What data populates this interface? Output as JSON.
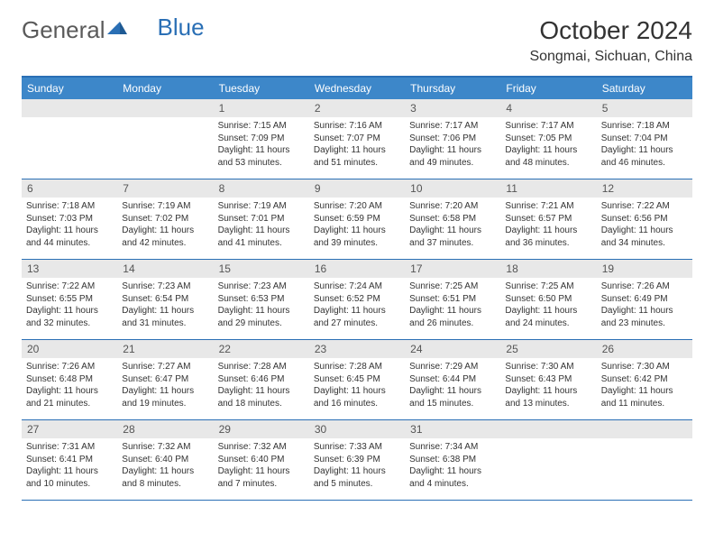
{
  "logo": {
    "text1": "General",
    "text2": "Blue"
  },
  "title": "October 2024",
  "location": "Songmai, Sichuan, China",
  "colors": {
    "header_bg": "#3d87c9",
    "border": "#2a6fb5",
    "daynum_bg": "#e8e8e8",
    "text": "#333333",
    "logo_gray": "#5a5a5a",
    "logo_blue": "#2a6fb5"
  },
  "days_of_week": [
    "Sunday",
    "Monday",
    "Tuesday",
    "Wednesday",
    "Thursday",
    "Friday",
    "Saturday"
  ],
  "weeks": [
    [
      {
        "n": "",
        "empty": true
      },
      {
        "n": "",
        "empty": true
      },
      {
        "n": "1",
        "sr": "7:15 AM",
        "ss": "7:09 PM",
        "dl": "11 hours and 53 minutes."
      },
      {
        "n": "2",
        "sr": "7:16 AM",
        "ss": "7:07 PM",
        "dl": "11 hours and 51 minutes."
      },
      {
        "n": "3",
        "sr": "7:17 AM",
        "ss": "7:06 PM",
        "dl": "11 hours and 49 minutes."
      },
      {
        "n": "4",
        "sr": "7:17 AM",
        "ss": "7:05 PM",
        "dl": "11 hours and 48 minutes."
      },
      {
        "n": "5",
        "sr": "7:18 AM",
        "ss": "7:04 PM",
        "dl": "11 hours and 46 minutes."
      }
    ],
    [
      {
        "n": "6",
        "sr": "7:18 AM",
        "ss": "7:03 PM",
        "dl": "11 hours and 44 minutes."
      },
      {
        "n": "7",
        "sr": "7:19 AM",
        "ss": "7:02 PM",
        "dl": "11 hours and 42 minutes."
      },
      {
        "n": "8",
        "sr": "7:19 AM",
        "ss": "7:01 PM",
        "dl": "11 hours and 41 minutes."
      },
      {
        "n": "9",
        "sr": "7:20 AM",
        "ss": "6:59 PM",
        "dl": "11 hours and 39 minutes."
      },
      {
        "n": "10",
        "sr": "7:20 AM",
        "ss": "6:58 PM",
        "dl": "11 hours and 37 minutes."
      },
      {
        "n": "11",
        "sr": "7:21 AM",
        "ss": "6:57 PM",
        "dl": "11 hours and 36 minutes."
      },
      {
        "n": "12",
        "sr": "7:22 AM",
        "ss": "6:56 PM",
        "dl": "11 hours and 34 minutes."
      }
    ],
    [
      {
        "n": "13",
        "sr": "7:22 AM",
        "ss": "6:55 PM",
        "dl": "11 hours and 32 minutes."
      },
      {
        "n": "14",
        "sr": "7:23 AM",
        "ss": "6:54 PM",
        "dl": "11 hours and 31 minutes."
      },
      {
        "n": "15",
        "sr": "7:23 AM",
        "ss": "6:53 PM",
        "dl": "11 hours and 29 minutes."
      },
      {
        "n": "16",
        "sr": "7:24 AM",
        "ss": "6:52 PM",
        "dl": "11 hours and 27 minutes."
      },
      {
        "n": "17",
        "sr": "7:25 AM",
        "ss": "6:51 PM",
        "dl": "11 hours and 26 minutes."
      },
      {
        "n": "18",
        "sr": "7:25 AM",
        "ss": "6:50 PM",
        "dl": "11 hours and 24 minutes."
      },
      {
        "n": "19",
        "sr": "7:26 AM",
        "ss": "6:49 PM",
        "dl": "11 hours and 23 minutes."
      }
    ],
    [
      {
        "n": "20",
        "sr": "7:26 AM",
        "ss": "6:48 PM",
        "dl": "11 hours and 21 minutes."
      },
      {
        "n": "21",
        "sr": "7:27 AM",
        "ss": "6:47 PM",
        "dl": "11 hours and 19 minutes."
      },
      {
        "n": "22",
        "sr": "7:28 AM",
        "ss": "6:46 PM",
        "dl": "11 hours and 18 minutes."
      },
      {
        "n": "23",
        "sr": "7:28 AM",
        "ss": "6:45 PM",
        "dl": "11 hours and 16 minutes."
      },
      {
        "n": "24",
        "sr": "7:29 AM",
        "ss": "6:44 PM",
        "dl": "11 hours and 15 minutes."
      },
      {
        "n": "25",
        "sr": "7:30 AM",
        "ss": "6:43 PM",
        "dl": "11 hours and 13 minutes."
      },
      {
        "n": "26",
        "sr": "7:30 AM",
        "ss": "6:42 PM",
        "dl": "11 hours and 11 minutes."
      }
    ],
    [
      {
        "n": "27",
        "sr": "7:31 AM",
        "ss": "6:41 PM",
        "dl": "11 hours and 10 minutes."
      },
      {
        "n": "28",
        "sr": "7:32 AM",
        "ss": "6:40 PM",
        "dl": "11 hours and 8 minutes."
      },
      {
        "n": "29",
        "sr": "7:32 AM",
        "ss": "6:40 PM",
        "dl": "11 hours and 7 minutes."
      },
      {
        "n": "30",
        "sr": "7:33 AM",
        "ss": "6:39 PM",
        "dl": "11 hours and 5 minutes."
      },
      {
        "n": "31",
        "sr": "7:34 AM",
        "ss": "6:38 PM",
        "dl": "11 hours and 4 minutes."
      },
      {
        "n": "",
        "empty": true
      },
      {
        "n": "",
        "empty": true
      }
    ]
  ],
  "labels": {
    "sunrise": "Sunrise:",
    "sunset": "Sunset:",
    "daylight": "Daylight:"
  }
}
